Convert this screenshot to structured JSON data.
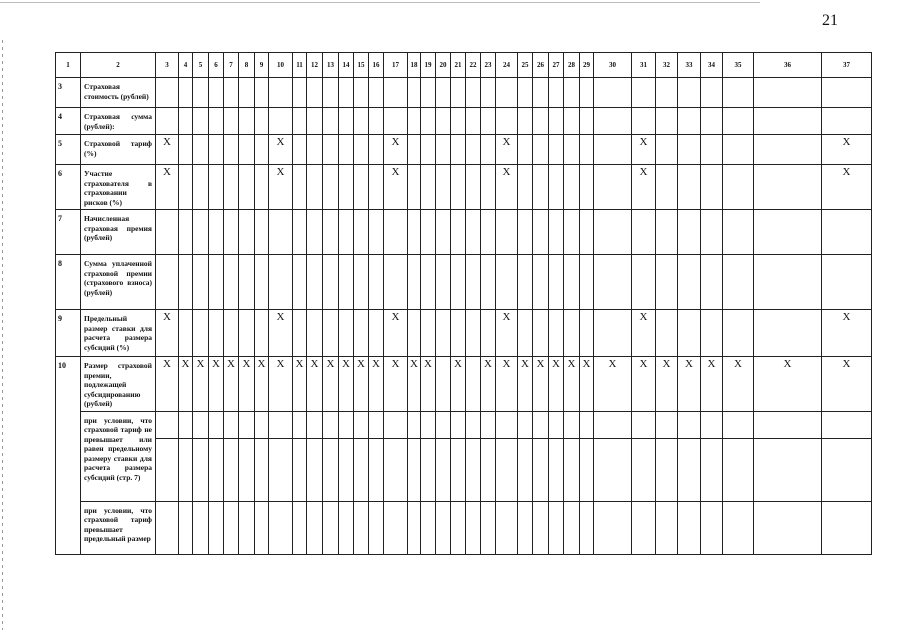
{
  "page_number": "21",
  "header": [
    "1",
    "2",
    "3",
    "4",
    "5",
    "6",
    "7",
    "8",
    "9",
    "10",
    "11",
    "12",
    "13",
    "14",
    "15",
    "16",
    "17",
    "18",
    "19",
    "20",
    "21",
    "22",
    "23",
    "24",
    "25",
    "26",
    "27",
    "28",
    "29",
    "30",
    "31",
    "32",
    "33",
    "34",
    "35",
    "36",
    "37"
  ],
  "rows": [
    {
      "num": "3",
      "label": "Страховая стоимость (рублей)",
      "x_columns": []
    },
    {
      "num": "4",
      "label": "Страховая сумма (рублей):",
      "x_columns": []
    },
    {
      "num": "5",
      "label": "Страховой тариф (%)",
      "x_columns": [
        3,
        10,
        17,
        24,
        31,
        37
      ]
    },
    {
      "num": "6",
      "label": "Участие страхователя в страховании рисков (%)",
      "x_columns": [
        3,
        10,
        17,
        24,
        31,
        37
      ]
    },
    {
      "num": "7",
      "label": "Начисленная страховая премия (рублей)",
      "x_columns": []
    },
    {
      "num": "8",
      "label": "Сумма уплаченной страховой премии (страхового взноса) (рублей)",
      "x_columns": []
    },
    {
      "num": "9",
      "label": "Предельный размер ставки для расчета размера субсидий (%)",
      "x_columns": [
        3,
        10,
        17,
        24,
        31,
        37
      ]
    },
    {
      "num": "10",
      "label": "Размер страховой премии, подлежащей субсидированию (рублей)",
      "x_columns": [
        3,
        4,
        5,
        6,
        7,
        8,
        9,
        10,
        11,
        12,
        13,
        14,
        15,
        16,
        17,
        18,
        19,
        21,
        23,
        24,
        25,
        26,
        27,
        28,
        29,
        30,
        31,
        32,
        33,
        34,
        35,
        36,
        37
      ]
    }
  ],
  "sub_rows": [
    {
      "label": "при условии, что страховой тариф не превышает или равен предельному размеру ставки для расчета размера субсидий (стр. 7)"
    },
    {
      "label": "при условии, что страховой тариф превышает предельный размер"
    }
  ],
  "mark": "X"
}
